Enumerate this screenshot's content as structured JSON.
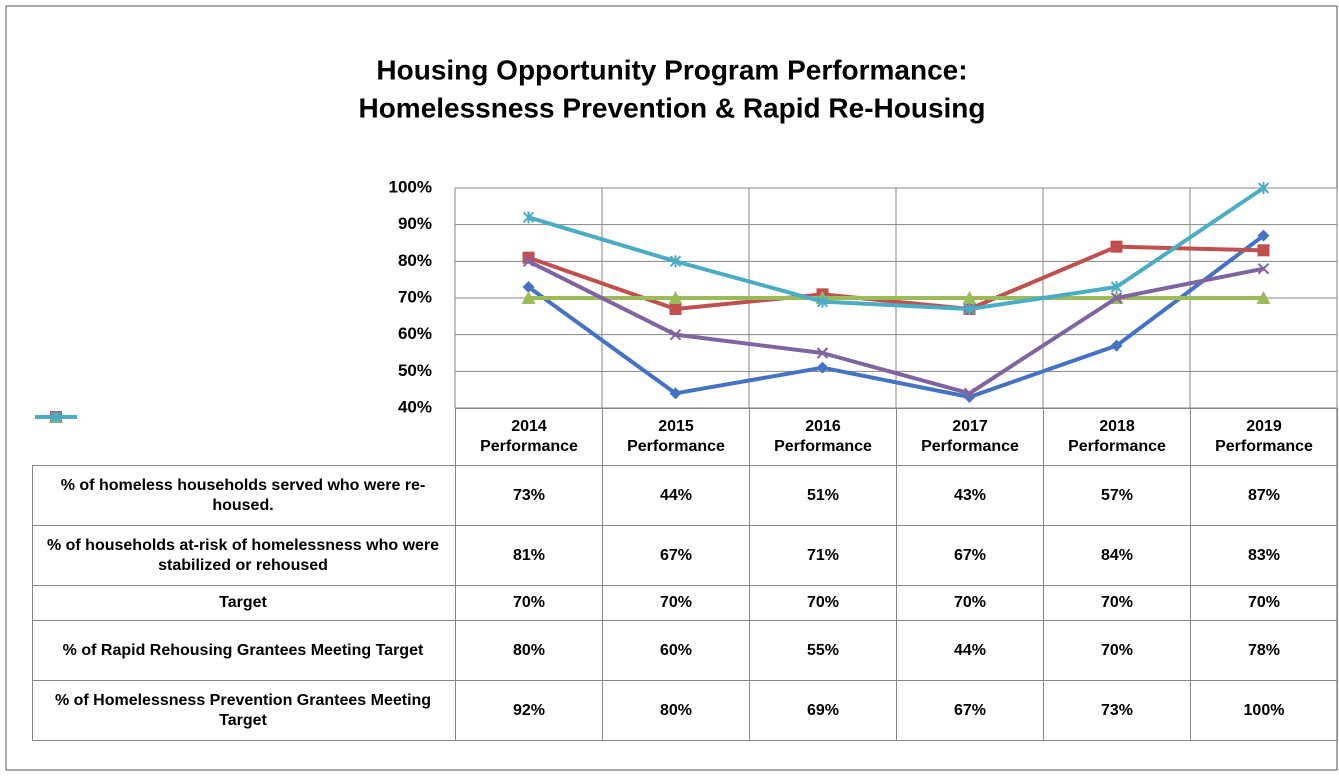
{
  "chart_data": {
    "type": "line",
    "title": [
      "Housing Opportunity Program Performance:",
      "Homelessness Prevention & Rapid Re-Housing"
    ],
    "categories": [
      "2014 Performance",
      "2015 Performance",
      "2016 Performance",
      "2017 Performance",
      "2018 Performance",
      "2019 Performance"
    ],
    "ylim": [
      40,
      100
    ],
    "yticks": [
      {
        "value": 40,
        "label": "40%"
      },
      {
        "value": 50,
        "label": "50%"
      },
      {
        "value": 60,
        "label": "60%"
      },
      {
        "value": 70,
        "label": "70%"
      },
      {
        "value": 80,
        "label": "80%"
      },
      {
        "value": 90,
        "label": "90%"
      },
      {
        "value": 100,
        "label": "100%"
      }
    ],
    "grid": true,
    "series": [
      {
        "name": "% of homeless households served  who were re-housed.",
        "color": "#4472c4",
        "marker": "diamond",
        "values": [
          73,
          44,
          51,
          43,
          57,
          87
        ],
        "value_labels": [
          "73%",
          "44%",
          "51%",
          "43%",
          "57%",
          "87%"
        ]
      },
      {
        "name": "% of households at-risk of homelessness who were stabilized or rehoused",
        "color": "#c0504d",
        "marker": "square",
        "values": [
          81,
          67,
          71,
          67,
          84,
          83
        ],
        "value_labels": [
          "81%",
          "67%",
          "71%",
          "67%",
          "84%",
          "83%"
        ]
      },
      {
        "name": "Target",
        "color": "#9bbb59",
        "marker": "triangle",
        "values": [
          70,
          70,
          70,
          70,
          70,
          70
        ],
        "value_labels": [
          "70%",
          "70%",
          "70%",
          "70%",
          "70%",
          "70%"
        ]
      },
      {
        "name": "% of Rapid Rehousing Grantees Meeting Target",
        "color": "#8064a2",
        "marker": "x",
        "values": [
          80,
          60,
          55,
          44,
          70,
          78
        ],
        "value_labels": [
          "80%",
          "60%",
          "55%",
          "44%",
          "70%",
          "78%"
        ]
      },
      {
        "name": "% of Homelessness Prevention Grantees Meeting Target",
        "color": "#4bacc6",
        "marker": "star",
        "values": [
          92,
          80,
          69,
          67,
          73,
          100
        ],
        "value_labels": [
          "92%",
          "80%",
          "69%",
          "67%",
          "73%",
          "100%"
        ]
      }
    ]
  }
}
